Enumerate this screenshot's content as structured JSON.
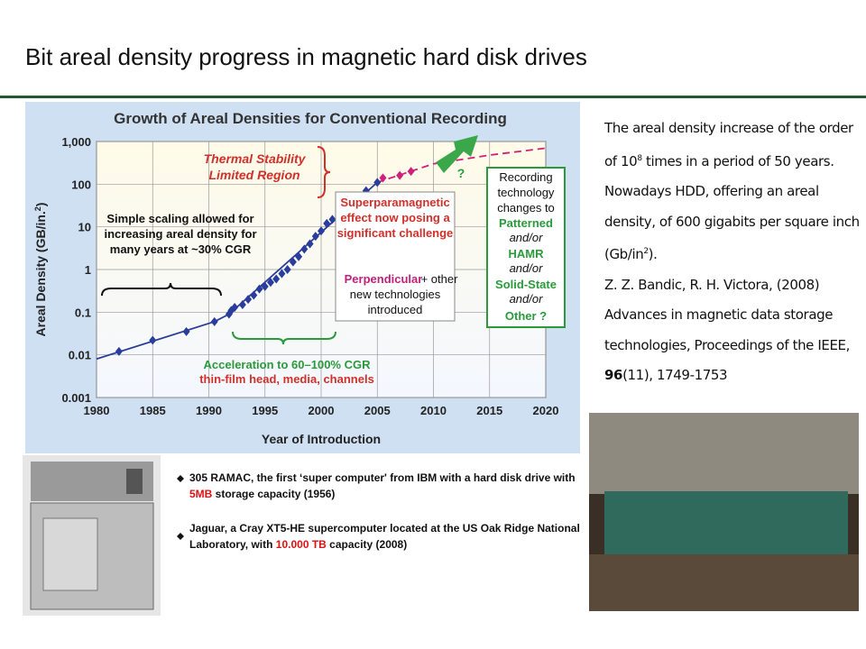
{
  "title": "Bit areal density progress in magnetic hard disk drives",
  "chart_data": {
    "type": "scatter",
    "title": "Growth of Areal Densities for Conventional Recording",
    "xlabel": "Year of Introduction",
    "ylabel": [
      "Areal Density (GB/in.",
      "2",
      ")"
    ],
    "xlim": [
      1980,
      2020
    ],
    "ylim": [
      0.001,
      1000
    ],
    "log_y": true,
    "grid": true,
    "xticks": [
      1980,
      1985,
      1990,
      1995,
      2000,
      2005,
      2010,
      2015,
      2020
    ],
    "yticks": [
      {
        "value": 1000,
        "label": "1,000"
      },
      100,
      10,
      1,
      0.1,
      0.01,
      0.001
    ],
    "series": [
      {
        "style": "line",
        "color": "#2a3d9c",
        "x": [
          1980,
          1990.5,
          1991.8,
          2005
        ],
        "values": [
          0.008,
          0.06,
          0.09,
          110
        ]
      },
      {
        "style": "dashed",
        "color": "#d0207a",
        "x": [
          2005,
          2010,
          2015,
          2020
        ],
        "values": [
          110,
          300,
          480,
          700
        ]
      },
      {
        "style": "markers",
        "color": "#2a3d9c",
        "x": [
          1982,
          1985,
          1988,
          1990.5,
          1991.8,
          1992,
          1992.3,
          1993,
          1993.5,
          1994,
          1994.5,
          1995,
          1995.5,
          1996,
          1996.5,
          1997,
          1997.5,
          1998,
          1998.5,
          1999,
          1999.5,
          2000,
          2000.5,
          2001,
          2002,
          2003,
          2004,
          2005
        ],
        "values": [
          0.012,
          0.022,
          0.035,
          0.06,
          0.09,
          0.11,
          0.13,
          0.15,
          0.2,
          0.25,
          0.35,
          0.4,
          0.5,
          0.6,
          0.8,
          1,
          1.5,
          2,
          3,
          4,
          6,
          8,
          12,
          15,
          25,
          40,
          70,
          110
        ]
      },
      {
        "style": "markers",
        "color": "#d0207a",
        "x": [
          2005.5,
          2007,
          2008
        ],
        "values": [
          140,
          160,
          200
        ]
      }
    ],
    "annotations": {
      "thermal": [
        "Thermal Stability",
        "Limited Region"
      ],
      "scaling": [
        "Simple scaling allowed for",
        "increasing areal density for",
        "many years at ~30% CGR"
      ],
      "challenge": [
        "Superparamagnetic",
        "effect now posing a",
        "significant challenge"
      ],
      "perpendicular": [
        "Perpendicular",
        "+ other",
        "new technologies",
        "introduced"
      ],
      "recording": [
        "Recording",
        "technology",
        "changes to",
        "Patterned",
        "and/or",
        "HAMR",
        "and/or",
        "Solid-State",
        "and/or",
        "Other ?"
      ],
      "acceleration": [
        "Acceleration to 60–100% CGR",
        "thin-film head, media, channels"
      ],
      "question": "?"
    }
  },
  "description": {
    "summary": [
      "The areal density increase of the order of 10",
      "8",
      " times in a period of 50 years. Nowadays HDD, offering an areal density, of 600 gigabits per square inch (Gb/in",
      "2",
      ")."
    ],
    "authors": "Z. Z. Bandic, R. H. Victora, (2008)",
    "reference": [
      "Advances in magnetic data storage technologies, Proceedings of the IEEE,",
      "96",
      "(11), 1749-1753"
    ]
  },
  "captions": [
    [
      "305 RAMAC, the first ‘super computer' from IBM with a hard disk drive with ",
      "5MB",
      " storage capacity (1956)"
    ],
    [
      "Jaguar, a Cray XT5-HE supercomputer located at the US Oak Ridge National Laboratory, with ",
      "10.000 TB",
      " capacity (2008)"
    ]
  ]
}
